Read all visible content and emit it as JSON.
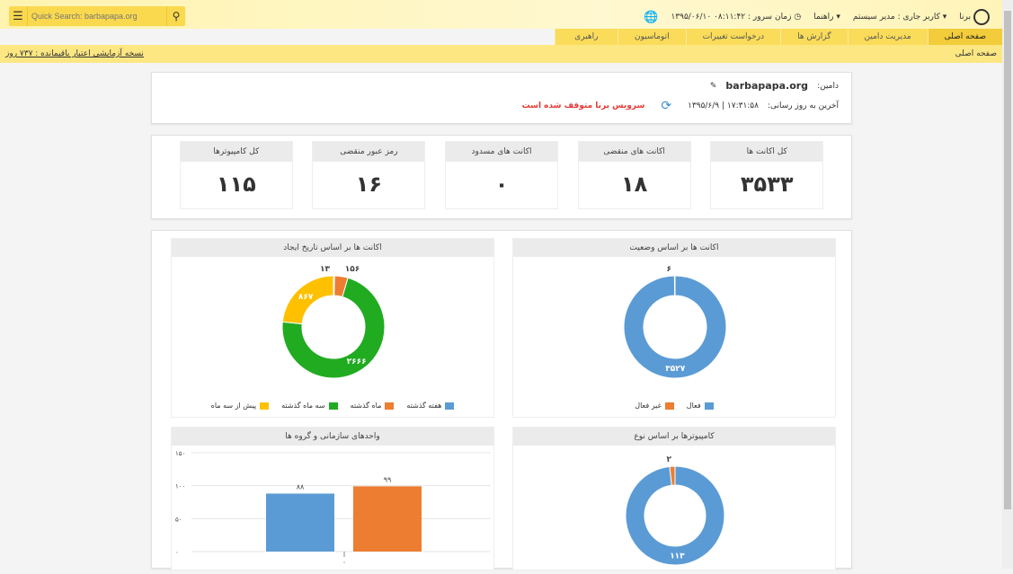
{
  "header": {
    "search_placeholder": "Quick Search: barbapapa.org",
    "logo_text": "برنا",
    "current_user": "کاربر جاری : مدیر سیستم",
    "help": "راهنما",
    "server_time": "زمان سرور : ۰۸:۱۱:۴۲ ۱۳۹۵/۰۶/۱۰"
  },
  "nav": [
    "صفحه اصلی",
    "مدیریت دامین",
    "گزارش ها",
    "درخواست تغییرات",
    "اتوماسیون",
    "راهبری"
  ],
  "breadcrumb": "صفحه اصلی",
  "trial_notice": "نسخه آزمایشی اعتبار باقیمانده : ۷۳۷ روز",
  "domain": {
    "label": "دامین:",
    "name": "barbapapa.org",
    "last_update_label": "آخرین به روز رسانی:",
    "last_update": "۱۷:۳۱:۵۸ | ۱۳۹۵/۶/۹",
    "service_status": "سرویس برنا متوقف شده است"
  },
  "stats": [
    {
      "label": "کل اکانت ها",
      "value": "۳۵۳۳"
    },
    {
      "label": "اکانت های منقضی",
      "value": "۱۸"
    },
    {
      "label": "اکانت های مسدود",
      "value": "۰"
    },
    {
      "label": "رمز عبور منقضی",
      "value": "۱۶"
    },
    {
      "label": "کل کامپیوترها",
      "value": "۱۱۵"
    }
  ],
  "colors": {
    "blue": "#5b9bd5",
    "orange": "#ed7d31",
    "green": "#21ab21",
    "yellow": "#ffc000",
    "accent": "#fbd94e"
  },
  "chart_data": [
    {
      "type": "pie",
      "title": "اکانت ها بر اساس وضعیت",
      "categories": [
        "فعال",
        "غیر فعال"
      ],
      "values": [
        3527,
        6
      ],
      "labels": [
        "۳۵۲۷",
        "۶"
      ],
      "legend": "bottom"
    },
    {
      "type": "pie",
      "title": "اکانت ها بر اساس تاریخ ایجاد",
      "categories": [
        "هفته گذشته",
        "ماه گذشته",
        "سه ماه گذشته",
        "پیش از سه ماه"
      ],
      "values": [
        13,
        156,
        2666,
        867
      ],
      "labels": [
        "۱۳",
        "۱۵۶",
        "۲۶۶۶",
        "۸۶۷"
      ],
      "legend": "bottom"
    },
    {
      "type": "pie",
      "title": "کامپیوترها بر اساس نوع",
      "values": [
        113,
        2
      ],
      "labels": [
        "۱۱۳",
        "۲"
      ]
    },
    {
      "type": "bar",
      "title": "واحدهای سازمانی و گروه ها",
      "categories": [
        "۰"
      ],
      "series": [
        {
          "values": [
            88
          ],
          "label": "۸۸"
        },
        {
          "values": [
            99
          ],
          "label": "۹۹"
        }
      ],
      "ylim": [
        0,
        150
      ],
      "yticks": [
        "۰",
        "۵۰",
        "۱۰۰",
        "۱۵۰"
      ],
      "grid": true
    }
  ]
}
